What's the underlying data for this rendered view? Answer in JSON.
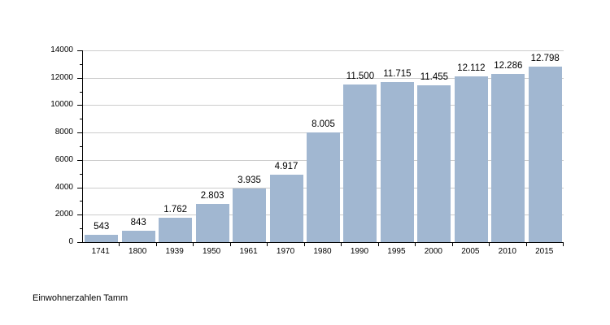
{
  "caption": "Einwohnerzahlen Tamm",
  "colors": {
    "bar": "#a1b7d1",
    "grid": "#cccccc",
    "axis": "#000000",
    "text": "#000000",
    "background": "#ffffff"
  },
  "chart_data": {
    "type": "bar",
    "title": "Einwohnerzahlen Tamm",
    "categories": [
      "1741",
      "1800",
      "1939",
      "1950",
      "1961",
      "1970",
      "1980",
      "1990",
      "1995",
      "2000",
      "2005",
      "2010",
      "2015"
    ],
    "values": [
      543,
      843,
      1762,
      2803,
      3935,
      4917,
      8005,
      11500,
      11715,
      11455,
      12112,
      12286,
      12798
    ],
    "value_labels": [
      "543",
      "843",
      "1.762",
      "2.803",
      "3.935",
      "4.917",
      "8.005",
      "11.500",
      "11.715",
      "11.455",
      "12.112",
      "12.286",
      "12.798"
    ],
    "xlabel": "",
    "ylabel": "",
    "ylim": [
      0,
      14000
    ],
    "yticks": [
      0,
      2000,
      4000,
      6000,
      8000,
      10000,
      12000,
      14000
    ],
    "ytick_labels": [
      "0",
      "2000",
      "4000",
      "6000",
      "8000",
      "10000",
      "12000",
      "14000"
    ],
    "minor_yticks": [
      1000,
      3000,
      5000,
      7000,
      9000,
      11000,
      13000
    ],
    "grid": true,
    "legend": false
  }
}
